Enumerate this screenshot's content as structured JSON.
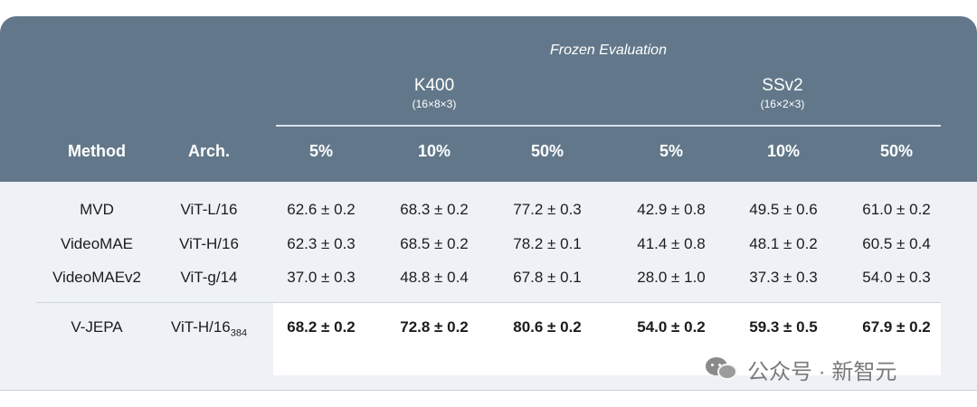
{
  "header": {
    "frozen_title": "Frozen Evaluation",
    "groups": [
      {
        "name": "K400",
        "sub": "(16×8×3)"
      },
      {
        "name": "SSv2",
        "sub": "(16×2×3)"
      }
    ],
    "columns": [
      "Method",
      "Arch.",
      "5%",
      "10%",
      "50%",
      "5%",
      "10%",
      "50%"
    ]
  },
  "rows": [
    {
      "method": "MVD",
      "arch": "ViT-L/16",
      "arch_sub": "",
      "values": [
        "62.6 ± 0.2",
        "68.3 ± 0.2",
        "77.2 ± 0.3",
        "42.9 ± 0.8",
        "49.5 ± 0.6",
        "61.0 ± 0.2"
      ]
    },
    {
      "method": "VideoMAE",
      "arch": "ViT-H/16",
      "arch_sub": "",
      "values": [
        "62.3 ± 0.3",
        "68.5 ± 0.2",
        "78.2 ± 0.1",
        "41.4 ± 0.8",
        "48.1 ± 0.2",
        "60.5 ± 0.4"
      ]
    },
    {
      "method": "VideoMAEv2",
      "arch": "ViT-g/14",
      "arch_sub": "",
      "values": [
        "37.0 ± 0.3",
        "48.8 ± 0.4",
        "67.8 ± 0.1",
        "28.0 ± 1.0",
        "37.3 ± 0.3",
        "54.0 ± 0.3"
      ]
    },
    {
      "method": "V-JEPA",
      "arch": "ViT-H/16",
      "arch_sub": "384",
      "values": [
        "68.2 ± 0.2",
        "72.8 ± 0.2",
        "80.6 ± 0.2",
        "54.0 ± 0.2",
        "59.3 ± 0.5",
        "67.9 ± 0.2"
      ]
    }
  ],
  "watermark": {
    "text": "公众号 · 新智元",
    "icon": "wechat-icon"
  }
}
